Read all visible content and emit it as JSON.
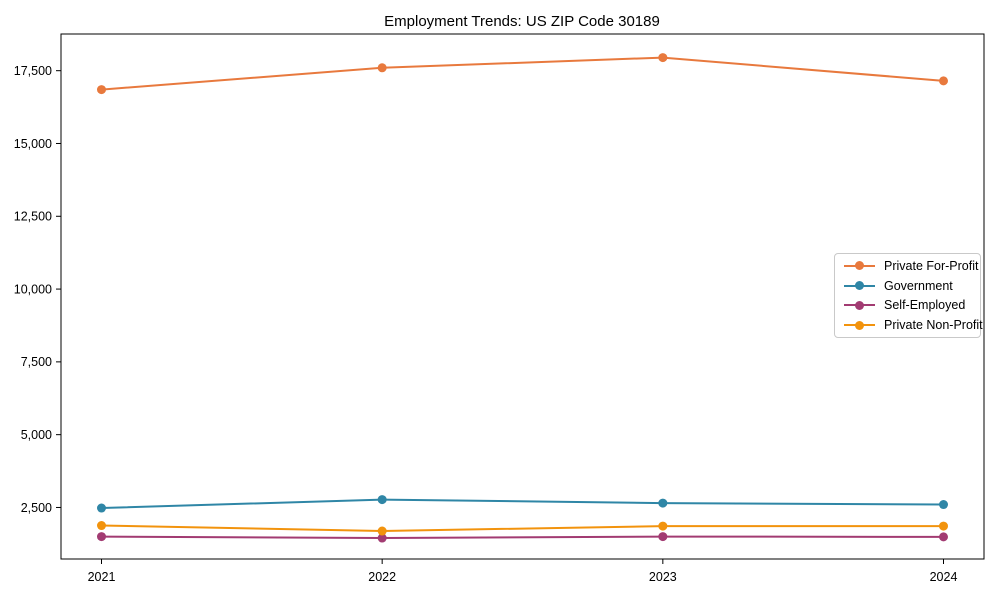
{
  "chart_data": {
    "type": "line",
    "title": "Employment Trends: US ZIP Code 30189",
    "categories": [
      "2021",
      "2022",
      "2023",
      "2024"
    ],
    "series": [
      {
        "name": "Private For-Profit",
        "color": "#E8793D",
        "values": [
          16850,
          17600,
          17950,
          17150
        ]
      },
      {
        "name": "Government",
        "color": "#2F86A6",
        "values": [
          2480,
          2770,
          2650,
          2600
        ]
      },
      {
        "name": "Self-Employed",
        "color": "#A23B72",
        "values": [
          1500,
          1450,
          1500,
          1490
        ]
      },
      {
        "name": "Private Non-Profit",
        "color": "#F2930D",
        "values": [
          1880,
          1690,
          1860,
          1860
        ]
      }
    ],
    "xlabel": "",
    "ylabel": "",
    "ylim": [
      730,
      18760
    ],
    "yticks": [
      2500,
      5000,
      7500,
      10000,
      12500,
      15000,
      17500
    ],
    "ytick_labels": [
      "2,500",
      "5,000",
      "7,500",
      "10,000",
      "12,500",
      "15,000",
      "17,500"
    ],
    "grid": false,
    "legend_position": "center-right",
    "marker": "circle",
    "axis_color": "#000000",
    "background_color": "#ffffff"
  }
}
